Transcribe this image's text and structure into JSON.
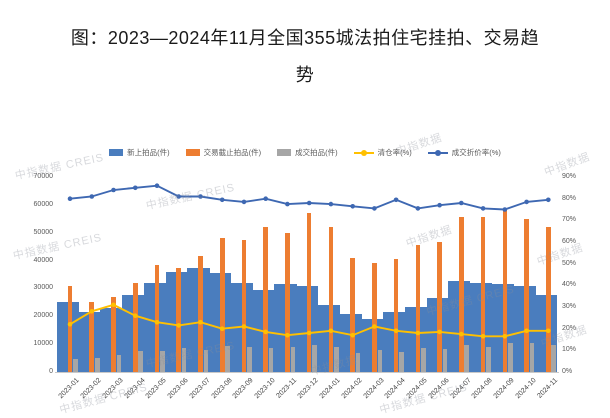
{
  "title": {
    "line1": "图：2023—2024年11月全国355城法拍住宅挂拍、交易趋",
    "line2": "势"
  },
  "watermark": {
    "full": "中指数据 CREIS",
    "short": "中指数据"
  },
  "chart_data": {
    "type": "bar",
    "subtype": "combo-bar-line",
    "title": "图：2023—2024年11月全国355城法拍住宅挂拍、交易趋势",
    "categories": [
      "2023-01",
      "2023-02",
      "2023-03",
      "2023-04",
      "2023-05",
      "2023-06",
      "2023-07",
      "2023-08",
      "2023-09",
      "2023-10",
      "2023-11",
      "2023-12",
      "2024-01",
      "2024-02",
      "2024-03",
      "2024-04",
      "2024-05",
      "2024-06",
      "2024-07",
      "2024-08",
      "2024-09",
      "2024-10",
      "2024-11"
    ],
    "series": [
      {
        "name": "新上拍品(件)",
        "type": "bar",
        "axis": "left",
        "color": "#4A7DBE",
        "values": [
          25000,
          21500,
          23000,
          27500,
          32000,
          36000,
          37500,
          35500,
          32000,
          29500,
          31500,
          31000,
          24000,
          21000,
          19000,
          21500,
          23500,
          26500,
          32500,
          32000,
          31500,
          31000,
          27500
        ]
      },
      {
        "name": "交易截止拍品(件)",
        "type": "bar",
        "axis": "left",
        "color": "#ED7D31",
        "values": [
          31000,
          25000,
          27000,
          32000,
          38500,
          37500,
          41500,
          48000,
          47500,
          52000,
          50000,
          57000,
          52000,
          41000,
          39000,
          40500,
          45500,
          46500,
          55500,
          55500,
          58000,
          55000,
          52000
        ]
      },
      {
        "name": "成交拍品(件)",
        "type": "bar",
        "axis": "left",
        "color": "#A6A6A6",
        "values": [
          4500,
          5000,
          6000,
          7500,
          7500,
          8500,
          8000,
          9500,
          9000,
          8500,
          9000,
          9700,
          9000,
          7000,
          8000,
          7200,
          8600,
          8200,
          9700,
          9000,
          10400,
          10400,
          9700
        ]
      },
      {
        "name": "清仓率(%)",
        "type": "line",
        "axis": "right",
        "color": "#FFC000",
        "values": [
          22,
          28,
          31,
          26,
          23,
          21.5,
          23,
          20,
          21,
          18.5,
          17,
          18,
          19,
          17,
          21,
          19,
          18,
          18.5,
          17.5,
          16.5,
          16.5,
          19,
          19
        ]
      },
      {
        "name": "成交折价率(%)",
        "type": "line",
        "axis": "right",
        "color": "#3E68B2",
        "values": [
          80,
          81,
          84,
          85,
          86,
          81,
          81,
          79.5,
          78.5,
          80,
          77.5,
          78,
          77.5,
          76.5,
          75.5,
          79.5,
          75.5,
          77,
          78,
          75.5,
          75,
          78.5,
          79.5
        ]
      }
    ],
    "left_axis": {
      "min": 0,
      "max": 70000,
      "step": 10000,
      "labels": [
        "0",
        "10000",
        "20000",
        "30000",
        "40000",
        "50000",
        "60000",
        "70000"
      ]
    },
    "right_axis": {
      "min": 0,
      "max": 90,
      "step": 10,
      "labels": [
        "0%",
        "10%",
        "20%",
        "30%",
        "40%",
        "50%",
        "60%",
        "70%",
        "80%",
        "90%"
      ]
    },
    "grid": false,
    "legend_position": "top"
  }
}
